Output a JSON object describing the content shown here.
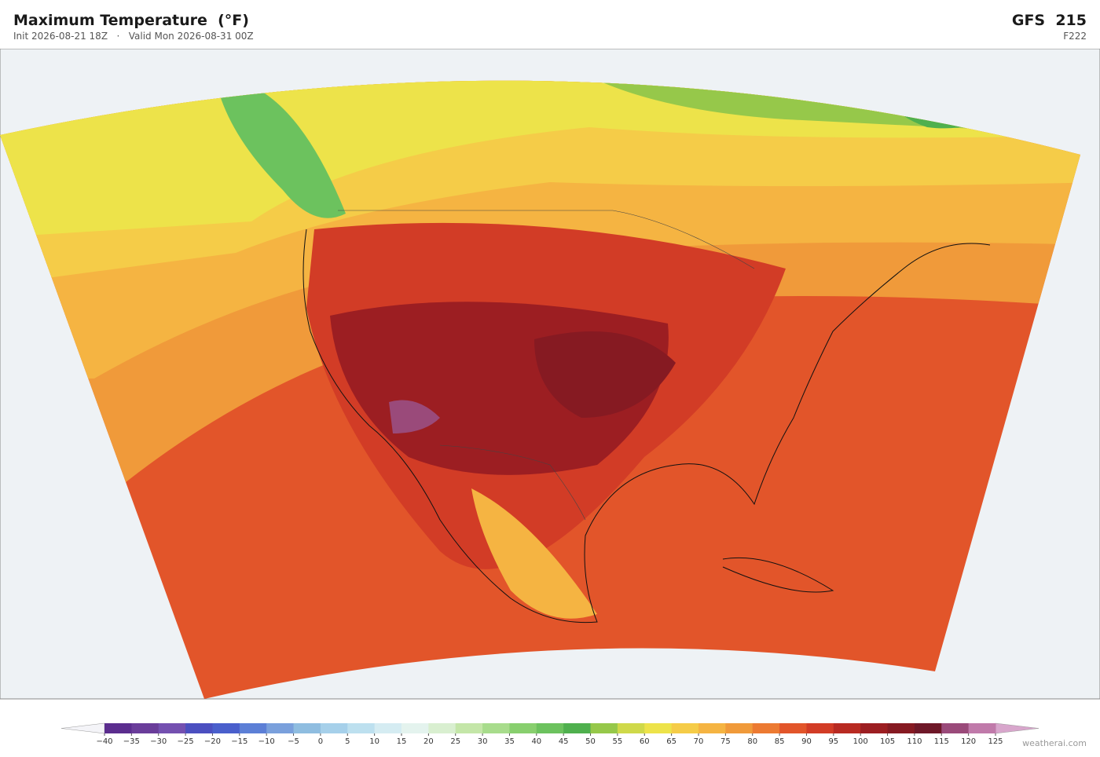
{
  "header": {
    "title": "Maximum Temperature  (°F)",
    "subtitle": "Init 2026-08-21 18Z   ·   Valid Mon 2026-08-31 00Z",
    "model": "GFS  215",
    "forecast_hour": "F222"
  },
  "colorbar": {
    "colors": [
      "#5b2d8e",
      "#6a3d9a",
      "#7450b0",
      "#4b4fc0",
      "#4a5fcc",
      "#5c7fd6",
      "#7aa0dc",
      "#8fbde0",
      "#a6d0ea",
      "#bde0ef",
      "#d5ecf2",
      "#e4f3ee",
      "#d9efd0",
      "#c4e6a8",
      "#a8dc8c",
      "#88cf6e",
      "#6cc25e",
      "#4fb04e",
      "#96c84a",
      "#cfd94a",
      "#ede34a",
      "#f5cc48",
      "#f5b442",
      "#f09a3a",
      "#ec7a32",
      "#e2552a",
      "#d23c26",
      "#b82a22",
      "#9c1e22",
      "#861a22",
      "#6e1828",
      "#9a4a7a",
      "#c07aaa"
    ],
    "ticks": [
      "−40",
      "−35",
      "−30",
      "−25",
      "−20",
      "−15",
      "−10",
      "−5",
      "0",
      "5",
      "10",
      "15",
      "20",
      "25",
      "30",
      "35",
      "40",
      "45",
      "50",
      "55",
      "60",
      "65",
      "70",
      "75",
      "80",
      "85",
      "90",
      "95",
      "100",
      "105",
      "110",
      "115",
      "120",
      "125"
    ]
  },
  "credit": "weatherai.com"
}
